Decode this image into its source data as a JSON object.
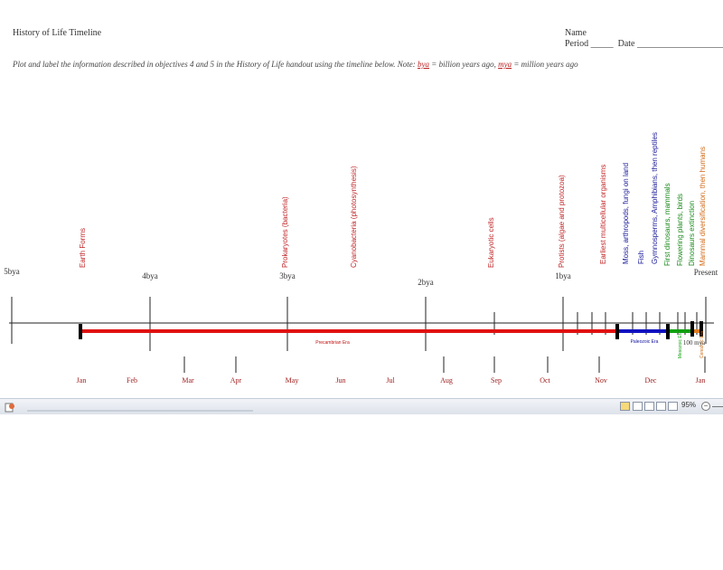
{
  "document": {
    "title": "History of Life Timeline",
    "name_label": "Name",
    "period_label": "Period _____",
    "date_label": "Date ____________________",
    "instructions_pre": "Plot and label the information described in objectives 4 and 5 in the History of Life handout using the timeline below.      Note:",
    "bya": "bya",
    "bya_text": " = billion years ago,",
    "mya": "mya",
    "mya_text": " = million years ago"
  },
  "timeline": {
    "start_label": "5bya",
    "label_4": "4bya",
    "label_3": "3bya",
    "label_2": "2bya",
    "label_1": "1bya",
    "present_label": "Present",
    "precambrian_label": "Precambrian Era",
    "paleozoic_label": "Paleozoic Era",
    "mesozoic_label": "Mesozoic Era",
    "cenozoic_label": "Cenozoic Era",
    "small_label": "100 mya"
  },
  "events": [
    {
      "text": "Earth Forms",
      "color": "#c0282a"
    },
    {
      "text": "Prokaryotes (bacteria)",
      "color": "#c0282a"
    },
    {
      "text": "Cyanobacteria (photosynthesis)",
      "color": "#c0282a"
    },
    {
      "text": "Eukaryotic cells",
      "color": "#c0282a"
    },
    {
      "text": "Protists (algae and protozoa)",
      "color": "#c0282a"
    },
    {
      "text": "Earliest multicellular organisms",
      "color": "#c0282a"
    },
    {
      "text": "Moss, arthropods, fungi on land",
      "color": "#1a1a9a"
    },
    {
      "text": "Fish",
      "color": "#1a1a9a"
    },
    {
      "text": "Gymnosperms, Amphibians, then reptiles",
      "color": "#1a1a9a"
    },
    {
      "text": "First dinosaurs, mammals",
      "color": "#1a8a1a"
    },
    {
      "text": "Flowering plants, birds",
      "color": "#1a8a1a"
    },
    {
      "text": "Dinosaurs extinction",
      "color": "#1a8a1a"
    },
    {
      "text": "Mammal diversification, then humans",
      "color": "#d26a1a"
    }
  ],
  "months": [
    "Jan",
    "Feb",
    "Mar",
    "Apr",
    "May",
    "Jun",
    "Jul",
    "Aug",
    "Sep",
    "Oct",
    "Nov",
    "Dec",
    "Jan"
  ],
  "statusbar": {
    "zoom": "95%"
  },
  "colors": {
    "precambrian": "#e01010",
    "paleozoic": "#1010c0",
    "mesozoic": "#10a010",
    "cenozoic": "#e08020"
  }
}
